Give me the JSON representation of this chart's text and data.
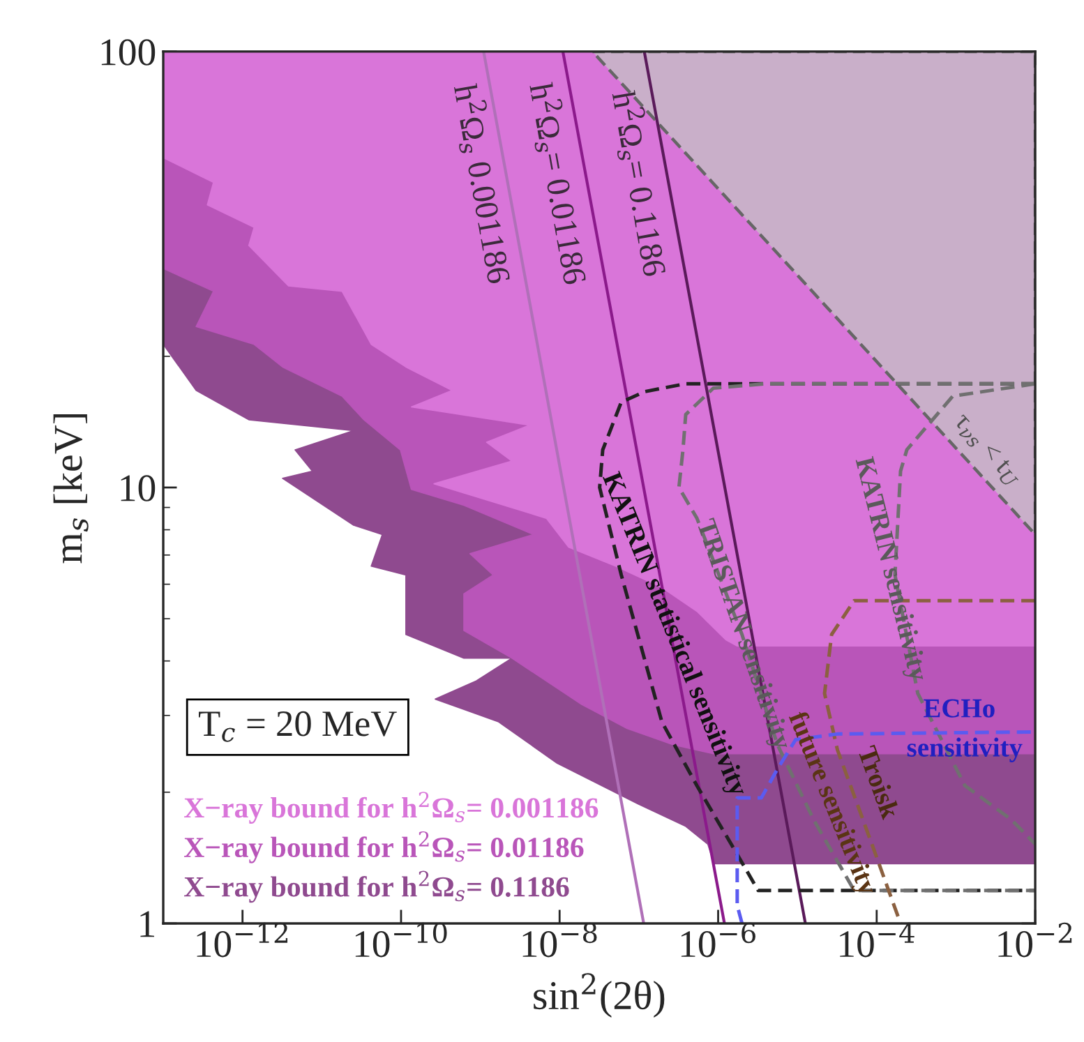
{
  "chart_data": {
    "type": "area",
    "xlabel": "sin$^{2}$(2θ)",
    "ylabel": "m$_{s}$ [keV]",
    "log": "xy",
    "xlim": [
      1e-13,
      0.01
    ],
    "ylim": [
      1,
      100
    ],
    "xticks": [
      {
        "value": 1e-12,
        "label": "10$^{−12}$"
      },
      {
        "value": 1e-10,
        "label": "10$^{−10}$"
      },
      {
        "value": 1e-08,
        "label": "10$^{−8}$"
      },
      {
        "value": 1e-06,
        "label": "10$^{−6}$"
      },
      {
        "value": 0.0001,
        "label": "10$^{−4}$"
      },
      {
        "value": 0.01,
        "label": "10$^{−2}$"
      }
    ],
    "yticks": [
      1,
      10,
      100
    ],
    "grid": false,
    "legend": "bottom left",
    "series": [
      {
        "name": "X−ray bound for h$^{2}$Ω$_{s}$= 0.1186",
        "color": "#8f4a8f",
        "x": [
          1e-13,
          1e-13,
          2.6e-13,
          1.2e-12,
          2.5e-11,
          4.6e-12,
          7.6e-12,
          3.2e-12,
          2.5e-11,
          5.8e-11,
          4.2e-11,
          1.15e-10,
          1.15e-10,
          6.2e-10,
          2.5e-09,
          8.9e-10,
          2.7e-10,
          1.7e-09,
          9.3e-09,
          9.8e-08,
          3.9e-07,
          7.4e-07,
          8.9e-07,
          0.01,
          0.01
        ],
        "values": [
          100,
          21.3,
          16.7,
          14.3,
          13.5,
          12.2,
          10.9,
          10.5,
          8.2,
          7.8,
          6.6,
          6.3,
          4.6,
          4.06,
          4.06,
          3.6,
          3.27,
          2.9,
          2.33,
          1.88,
          1.67,
          1.52,
          1.37,
          1.37,
          100
        ]
      },
      {
        "name": "X−ray bound for h$^{2}$Ω$_{s}$= 0.01186",
        "color": "#b955b9",
        "x": [
          1e-13,
          1e-13,
          4.3e-13,
          2.6e-13,
          1.4e-12,
          3.2e-12,
          1.8e-11,
          3.4e-11,
          9.8e-11,
          1.35e-10,
          6.2e-10,
          4.7e-09,
          7.4e-10,
          1.45e-09,
          6.2e-10,
          6.2e-10,
          2.5e-09,
          1.9e-08,
          7.1e-08,
          2.7e-07,
          8.7e-07,
          0.01,
          0.01
        ],
        "values": [
          68.7,
          31.8,
          28.2,
          23.4,
          21.3,
          18.9,
          16.2,
          14.3,
          12.2,
          9.9,
          9.1,
          7.8,
          7.05,
          6.3,
          5.7,
          4.7,
          4.06,
          3.18,
          2.8,
          2.57,
          2.45,
          2.45,
          68.7
        ]
      },
      {
        "name": "X−ray bound for h$^{2}$Ω$_{s}$= 0.001186",
        "color": "#d975d9",
        "x": [
          1e-13,
          1e-13,
          4.3e-13,
          3.6e-13,
          1.4e-12,
          1.2e-12,
          3.8e-12,
          1.8e-11,
          2.9e-11,
          4.2e-11,
          1.15e-10,
          4.4e-10,
          1.35e-10,
          4.2e-09,
          1.2e-09,
          2.5e-09,
          2.6e-10,
          6.8e-09,
          1.3e-08,
          5.1e-08,
          1.95e-07,
          5.4e-07,
          1.26e-06,
          1.74e-06,
          0.01,
          0.01
        ],
        "values": [
          100,
          57.1,
          50.1,
          44.5,
          39.5,
          35.9,
          29.0,
          28.2,
          24.1,
          21.3,
          18.9,
          16.7,
          15.3,
          13.9,
          12.7,
          11.5,
          10.2,
          8.5,
          7.3,
          6.6,
          5.9,
          5.2,
          4.47,
          4.33,
          4.33,
          100
        ]
      },
      {
        "color": "#c9afc9",
        "line_style": "dashed",
        "x": [
          2.6e-08,
          0.01,
          0.01
        ],
        "values": [
          100,
          100,
          7.8
        ]
      },
      {
        "type": "line",
        "color": "#b070b8",
        "x": [
          1.1e-09,
          1.15e-07
        ],
        "values": [
          100,
          1
        ]
      },
      {
        "type": "line",
        "color": "#8b1a8b",
        "x": [
          1.1e-08,
          1.2e-06
        ],
        "values": [
          100,
          1
        ]
      },
      {
        "type": "line",
        "color": "#5a1a5a",
        "x": [
          1.17e-07,
          1.26e-05
        ],
        "values": [
          100,
          1
        ]
      },
      {
        "type": "line",
        "color": "#222222",
        "line_style": "dashed",
        "x": [
          0.01,
          3.9e-07,
          1.2e-07,
          6e-08,
          3.5e-08,
          3.2e-08,
          6e-08,
          1.95e-07,
          5.4e-07,
          1.74e-06,
          3.2e-06,
          0.01
        ],
        "values": [
          17.3,
          17.3,
          16.6,
          15.7,
          12.2,
          10.0,
          6.3,
          2.9,
          2.07,
          1.44,
          1.19,
          1.19
        ]
      },
      {
        "type": "line",
        "color": "#707070",
        "line_style": "dashed",
        "x": [
          0.01,
          4.1e-06,
          8.7e-07,
          3.9e-07,
          3.6e-07,
          3.2e-07,
          5.4e-07,
          2e-06,
          5.6e-06,
          1.6e-05,
          5.2e-05,
          0.01
        ],
        "values": [
          17.3,
          17.3,
          16.9,
          14.7,
          12.2,
          10.0,
          8.5,
          4.6,
          2.57,
          1.73,
          1.19,
          1.19
        ]
      },
      {
        "type": "line",
        "color": "#707070",
        "line_style": "dashed",
        "x": [
          0.01,
          0.00091,
          0.00024,
          0.0002,
          0.00017,
          0.00033,
          0.0013,
          0.005,
          0.01
        ],
        "values": [
          17.3,
          16.2,
          12.2,
          10.9,
          6.3,
          3.37,
          2.07,
          1.73,
          1.52
        ]
      },
      {
        "type": "line",
        "color": "#8b6040",
        "line_style": "dashed",
        "x": [
          0.01,
          5.2e-05,
          2.7e-05,
          2.2e-05,
          3.2e-05,
          8.7e-05,
          0.0002
        ],
        "values": [
          5.5,
          5.5,
          4.6,
          3.37,
          2.5,
          1.52,
          1.0
        ]
      },
      {
        "type": "line",
        "color": "#5b5bf0",
        "line_style": "dashed",
        "x": [
          2e-06,
          1.74e-06,
          1.74e-06,
          3.5e-06,
          5.6e-06,
          9.5e-06,
          3.2e-05,
          0.01
        ],
        "values": [
          1.0,
          1.1,
          1.94,
          1.94,
          2.26,
          2.64,
          2.72,
          2.75
        ]
      }
    ],
    "annotations": [
      "h$^{2}$Ω$_{s}$ 0.001186",
      "h$^{2}$Ω$_{s}$= 0.01186",
      "h$^{2}$Ω$_{s}$= 0.1186",
      "τ$_{νs}$ < t$_{U}$",
      "KATRIN statistical sensitivity",
      "TRISTAN sensitivity",
      "KATRIN sensitivity",
      "future sensitivity",
      "Troisk",
      "ECHo",
      "sensitivity",
      "T$_{c}$ = 20 MeV"
    ]
  }
}
